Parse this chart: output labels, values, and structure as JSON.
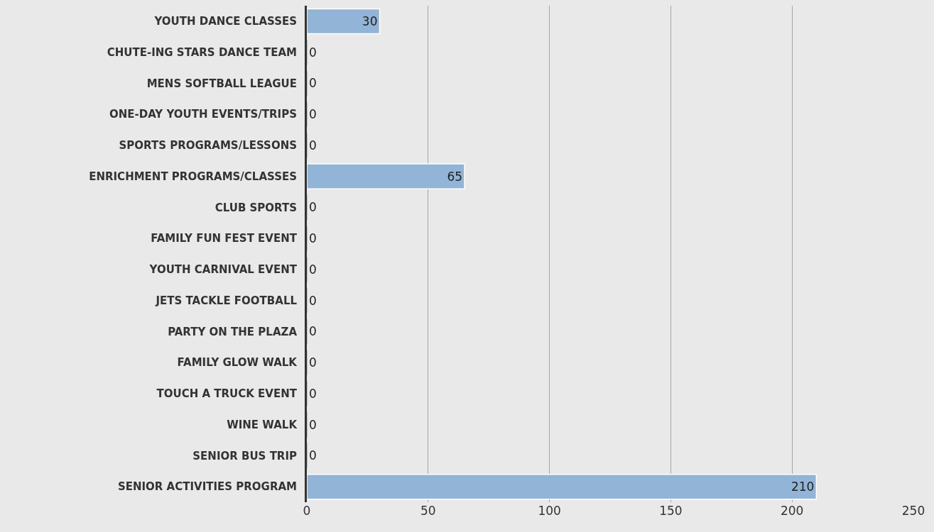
{
  "chart_data": {
    "type": "bar",
    "orientation": "horizontal",
    "categories": [
      "YOUTH DANCE CLASSES",
      "CHUTE-ING STARS DANCE TEAM",
      "MENS SOFTBALL LEAGUE",
      "ONE-DAY YOUTH EVENTS/TRIPS",
      "SPORTS PROGRAMS/LESSONS",
      "ENRICHMENT PROGRAMS/CLASSES",
      "CLUB SPORTS",
      "FAMILY FUN FEST EVENT",
      "YOUTH CARNIVAL EVENT",
      "JETS TACKLE FOOTBALL",
      "PARTY ON THE PLAZA",
      "FAMILY GLOW WALK",
      "TOUCH A TRUCK EVENT",
      "WINE WALK",
      "SENIOR BUS TRIP",
      "SENIOR ACTIVITIES PROGRAM"
    ],
    "values": [
      30,
      0,
      0,
      0,
      0,
      65,
      0,
      0,
      0,
      0,
      0,
      0,
      0,
      0,
      0,
      210
    ],
    "color": "#92b4d6",
    "xlim": [
      0,
      250
    ],
    "xticks": [
      0,
      50,
      100,
      150,
      200,
      250
    ],
    "grid": "x",
    "data_labels": true
  }
}
